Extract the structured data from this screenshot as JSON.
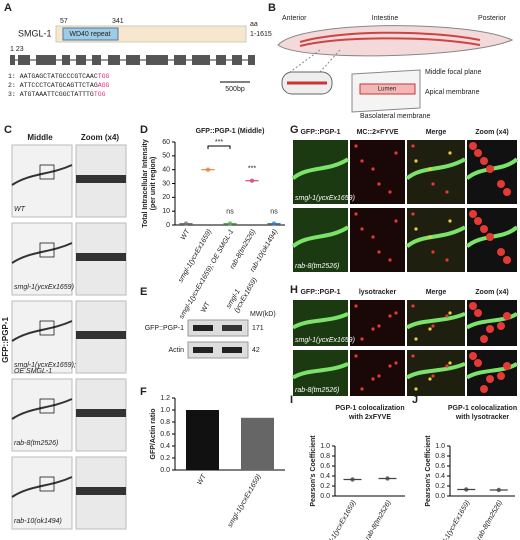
{
  "panels": {
    "a": {
      "letter": "A",
      "protein": "SMGL-1",
      "domain": "WD40 repeat",
      "start": "57",
      "end": "341",
      "aa": "aa",
      "range": "1-1615",
      "guides": "1 23",
      "seqs": [
        {
          "n": "1:",
          "seq": "AATGAGCTATGCCCGTCAAC",
          "pam": "TGG"
        },
        {
          "n": "2:",
          "seq": "ATTCCCTCATGCAGTTCTAG",
          "pam": "AGG"
        },
        {
          "n": "3:",
          "seq": "ATGTAAATTCGGCTATTTG",
          "pam": "TGG"
        }
      ],
      "scale": "500bp"
    },
    "b": {
      "letter": "B",
      "anterior": "Anterior",
      "intestine": "Intestine",
      "posterior": "Posterior",
      "middle": "Middle focal plane",
      "lumen": "Lumen",
      "apical": "Apical membrane",
      "basolateral": "Basolateral membrane"
    },
    "c": {
      "letter": "C",
      "col1": "Middle",
      "col2": "Zoom (x4)",
      "side": "GFP::PGP-1",
      "rows": [
        "WT",
        "smgl-1(ycxEx1659)",
        "smgl-1(ycxEx1659);",
        "rab-8(tm2526)",
        "rab-10(ok1494)"
      ],
      "row3b": "OE SMGL-1"
    },
    "e": {
      "letter": "E",
      "lanes": [
        "WT",
        "smgl-1",
        "(ycxEx1659)"
      ],
      "mw": "MW(kD)",
      "bands": [
        "GFP::PGP-1",
        "Actin"
      ],
      "sizes": [
        "171",
        "42"
      ]
    },
    "g": {
      "letter": "G",
      "cols": [
        "GFP::PGP-1",
        "MC::2×FYVE",
        "Merge",
        "Zoom (x4)"
      ],
      "rows": [
        "smgl-1(ycxEx1659)",
        "rab-8(tm2526)"
      ]
    },
    "h": {
      "letter": "H",
      "cols": [
        "GFP::PGP-1",
        "lysotracker",
        "Merge",
        "Zoom (x4)"
      ],
      "rows": [
        "smgl-1(ycxEx1659)",
        "rab-8(tm2526)"
      ]
    }
  },
  "chart_data": [
    {
      "type": "dot",
      "letter": "D",
      "title": [
        "GFP::PGP-1 (Middle)"
      ],
      "ylabel": [
        "Total Intracellular Intensity",
        "(per unit region)"
      ],
      "categories": [
        "WT",
        "smgl-1(ycxEx1659)",
        "smgl-1(ycxEx1659); OE SMGL-1",
        "rab-8(tm2526)",
        "rab-10(ok1494)"
      ],
      "values": [
        1,
        40,
        1,
        32,
        1
      ],
      "colors": [
        "#777777",
        "#e8833a",
        "#4caf50",
        "#d9467a",
        "#3a7bd5"
      ],
      "annotations": [
        null,
        null,
        "ns",
        "***",
        "ns"
      ],
      "bracket": "***",
      "ylim": [
        0,
        60
      ],
      "yticks": [
        0,
        10,
        20,
        30,
        40,
        50,
        60
      ]
    },
    {
      "type": "bar",
      "letter": "F",
      "title": [],
      "ylabel": [
        "GFP/Actin ratio"
      ],
      "categories": [
        "WT",
        "smgl-1(ycxEx1659)"
      ],
      "values": [
        1.0,
        0.87
      ],
      "colors": [
        "#111111",
        "#666666"
      ],
      "ylim": [
        0,
        1.2
      ],
      "yticks": [
        {
          "value": 0,
          "label": "0.0"
        },
        {
          "value": 0.2,
          "label": "0.2"
        },
        {
          "value": 0.4,
          "label": "0.4"
        },
        {
          "value": 0.6,
          "label": "0.6"
        },
        {
          "value": 0.8,
          "label": "0.8"
        },
        {
          "value": 1,
          "label": "1.0"
        },
        {
          "value": 1.2,
          "label": "1.2"
        }
      ]
    },
    {
      "type": "dot",
      "letter": "I",
      "title": [
        "PGP-1 colocalization",
        "with 2xFYVE"
      ],
      "ylabel": [
        "Pearson's Coefficient"
      ],
      "categories": [
        "smgl-1(ycxEx1659)",
        "rab-8(tm2526)"
      ],
      "values": [
        0.33,
        0.35
      ],
      "colors": [
        "#444444",
        "#444444"
      ],
      "ylim": [
        0,
        1
      ],
      "yticks": [
        {
          "value": 0,
          "label": "0.0"
        },
        {
          "value": 0.2,
          "label": "0.2"
        },
        {
          "value": 0.4,
          "label": "0.4"
        },
        {
          "value": 0.6,
          "label": "0.6"
        },
        {
          "value": 0.8,
          "label": "0.8"
        },
        {
          "value": 1,
          "label": "1.0"
        }
      ]
    },
    {
      "type": "dot",
      "letter": "J",
      "title": [
        "PGP-1 colocalization",
        "with lysotracker"
      ],
      "ylabel": [
        "Pearson's Coefficient"
      ],
      "categories": [
        "smgl-1(ycxEx1659)",
        "rab-8(tm2526)"
      ],
      "values": [
        0.13,
        0.12
      ],
      "colors": [
        "#444444",
        "#444444"
      ],
      "ylim": [
        0,
        1
      ],
      "yticks": [
        {
          "value": 0,
          "label": "0.0"
        },
        {
          "value": 0.2,
          "label": "0.2"
        },
        {
          "value": 0.4,
          "label": "0.4"
        },
        {
          "value": 0.6,
          "label": "0.6"
        },
        {
          "value": 0.8,
          "label": "0.8"
        },
        {
          "value": 1,
          "label": "1.0"
        }
      ]
    }
  ]
}
